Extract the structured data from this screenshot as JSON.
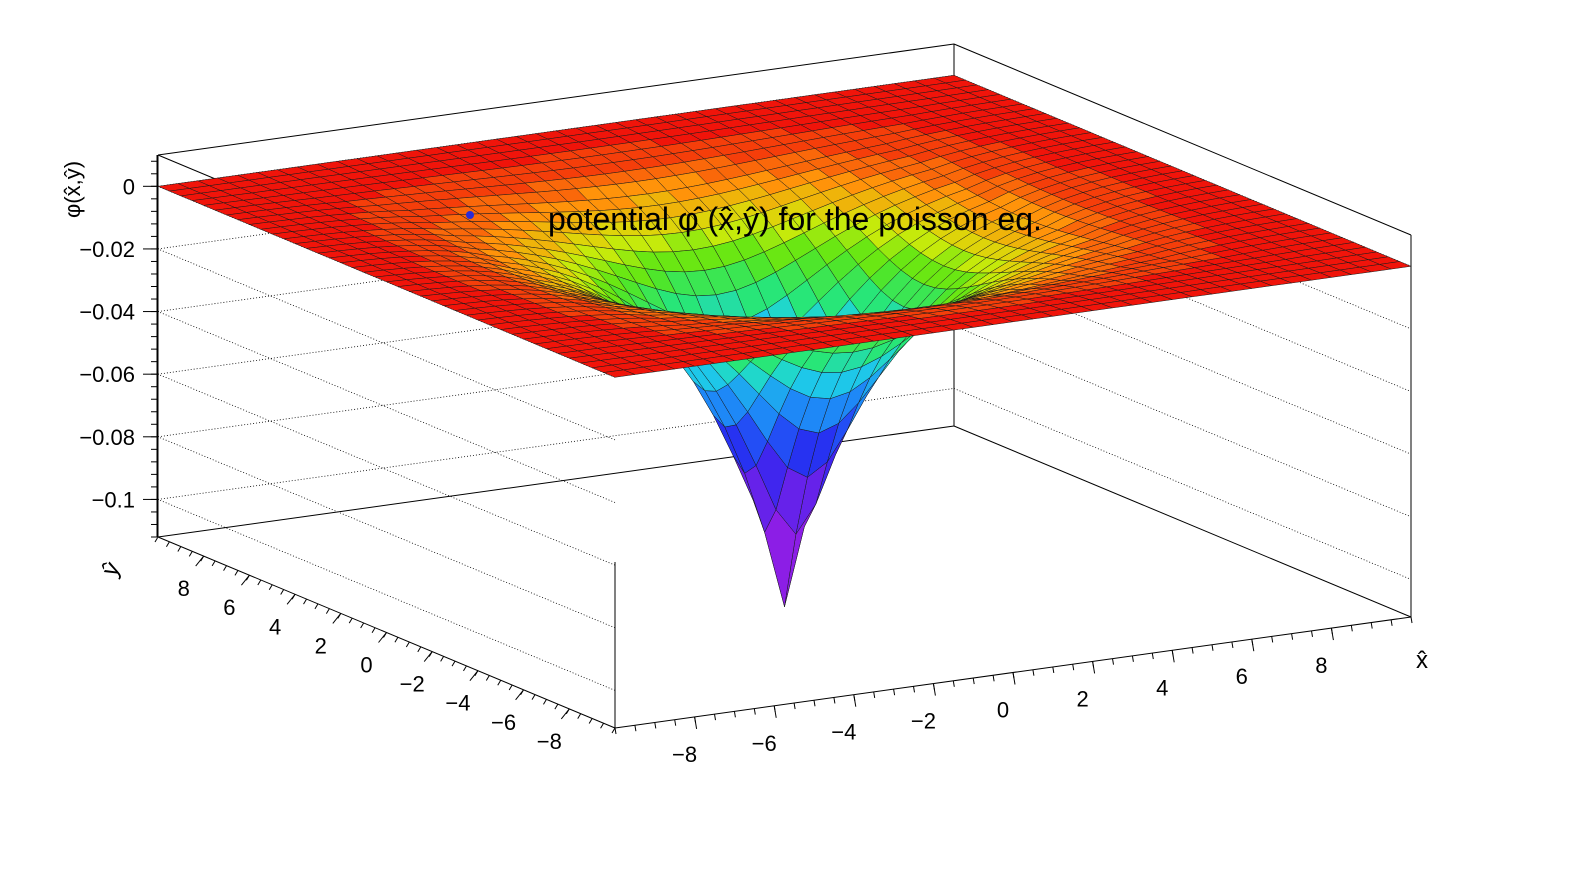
{
  "chart_data": {
    "type": "surface",
    "title": "potential φ̂ (x̂,ŷ) for the poisson eq.",
    "xlabel": "x̂",
    "ylabel": "ŷ",
    "zlabel": "φ(x̂,ŷ)",
    "xlim": [
      -10,
      10
    ],
    "ylim": [
      -10,
      10
    ],
    "zlim": [
      -0.112,
      0.01
    ],
    "x_ticks": [
      "−8",
      "−6",
      "−4",
      "−2",
      "0",
      "2",
      "4",
      "6",
      "8"
    ],
    "y_ticks": [
      "8",
      "6",
      "4",
      "2",
      "0",
      "−2",
      "−4",
      "−6",
      "−8"
    ],
    "z_ticks": [
      "0",
      "−0.02",
      "−0.04",
      "−0.06",
      "−0.08",
      "−0.1"
    ],
    "grid_lines": true,
    "colormap": "rainbow",
    "grid_size": 40,
    "surface": {
      "description": "radially symmetric well centered at origin",
      "center_value": -0.1215,
      "edge_value": 0.0
    },
    "marker_color": "#2b2bd6"
  }
}
